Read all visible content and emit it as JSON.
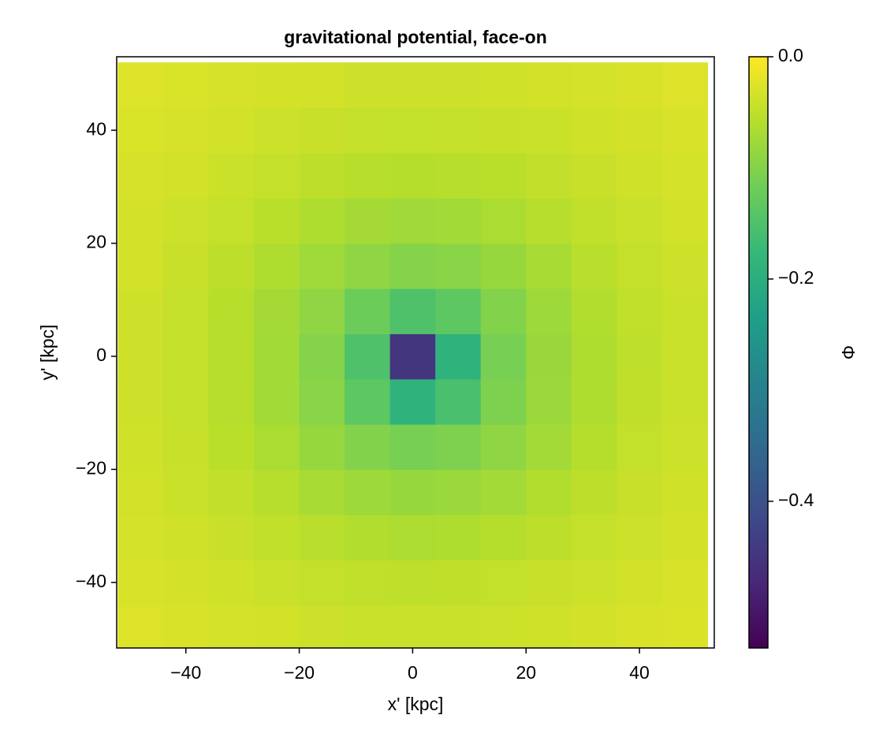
{
  "chart_data": {
    "type": "heatmap",
    "title": "gravitational potential, face-on",
    "x_label": "x' [kpc]",
    "y_label": "y' [kpc]",
    "colorbar_label": "Φ",
    "colormap": "viridis",
    "xlim": [
      -52.2,
      53.2
    ],
    "ylim": [
      -51.6,
      53
    ],
    "xticks": [
      {
        "value": -40,
        "label": "−40"
      },
      {
        "value": -20,
        "label": "−20"
      },
      0,
      20,
      40
    ],
    "yticks": [
      {
        "value": -40,
        "label": "−40"
      },
      {
        "value": -20,
        "label": "−20"
      },
      0,
      20,
      40
    ],
    "zlim": [
      -0.532,
      0
    ],
    "zticks": [
      {
        "value": 0,
        "label": "0.0"
      },
      {
        "value": -0.2,
        "label": "−0.2"
      },
      {
        "value": -0.4,
        "label": "−0.4"
      }
    ],
    "x": [
      -48,
      -40,
      -32,
      -24,
      -16,
      -8,
      0,
      8,
      16,
      24,
      32,
      40,
      48
    ],
    "y": [
      -48,
      -40,
      -32,
      -24,
      -16,
      -8,
      0,
      8,
      16,
      24,
      32,
      40,
      48
    ],
    "z": [
      [
        -0.027,
        -0.031,
        -0.033,
        -0.036,
        -0.039,
        -0.041,
        -0.042,
        -0.042,
        -0.04,
        -0.037,
        -0.034,
        -0.031,
        -0.028
      ],
      [
        -0.031,
        -0.034,
        -0.037,
        -0.042,
        -0.046,
        -0.049,
        -0.051,
        -0.05,
        -0.047,
        -0.043,
        -0.04,
        -0.035,
        -0.031
      ],
      [
        -0.033,
        -0.037,
        -0.043,
        -0.049,
        -0.055,
        -0.062,
        -0.065,
        -0.063,
        -0.058,
        -0.052,
        -0.045,
        -0.04,
        -0.034
      ],
      [
        -0.035,
        -0.041,
        -0.048,
        -0.057,
        -0.069,
        -0.078,
        -0.083,
        -0.08,
        -0.073,
        -0.062,
        -0.052,
        -0.043,
        -0.037
      ],
      [
        -0.037,
        -0.044,
        -0.054,
        -0.067,
        -0.083,
        -0.1,
        -0.11,
        -0.105,
        -0.09,
        -0.073,
        -0.058,
        -0.047,
        -0.04
      ],
      [
        -0.039,
        -0.046,
        -0.057,
        -0.074,
        -0.095,
        -0.135,
        -0.19,
        -0.155,
        -0.105,
        -0.08,
        -0.063,
        -0.05,
        -0.042
      ],
      [
        -0.039,
        -0.046,
        -0.057,
        -0.074,
        -0.098,
        -0.15,
        -0.45,
        -0.19,
        -0.11,
        -0.082,
        -0.064,
        -0.051,
        -0.042
      ],
      [
        -0.038,
        -0.046,
        -0.056,
        -0.072,
        -0.09,
        -0.12,
        -0.15,
        -0.135,
        -0.1,
        -0.078,
        -0.062,
        -0.049,
        -0.041
      ],
      [
        -0.036,
        -0.043,
        -0.052,
        -0.064,
        -0.077,
        -0.09,
        -0.098,
        -0.095,
        -0.083,
        -0.069,
        -0.055,
        -0.046,
        -0.039
      ],
      [
        -0.034,
        -0.04,
        -0.046,
        -0.054,
        -0.064,
        -0.072,
        -0.076,
        -0.074,
        -0.067,
        -0.057,
        -0.049,
        -0.042,
        -0.036
      ],
      [
        -0.032,
        -0.036,
        -0.041,
        -0.046,
        -0.052,
        -0.056,
        -0.058,
        -0.057,
        -0.054,
        -0.048,
        -0.043,
        -0.037,
        -0.033
      ],
      [
        -0.029,
        -0.032,
        -0.036,
        -0.04,
        -0.043,
        -0.046,
        -0.047,
        -0.046,
        -0.044,
        -0.041,
        -0.037,
        -0.034,
        -0.031
      ],
      [
        -0.026,
        -0.029,
        -0.032,
        -0.034,
        -0.036,
        -0.038,
        -0.039,
        -0.039,
        -0.037,
        -0.035,
        -0.033,
        -0.031,
        -0.027
      ]
    ]
  }
}
